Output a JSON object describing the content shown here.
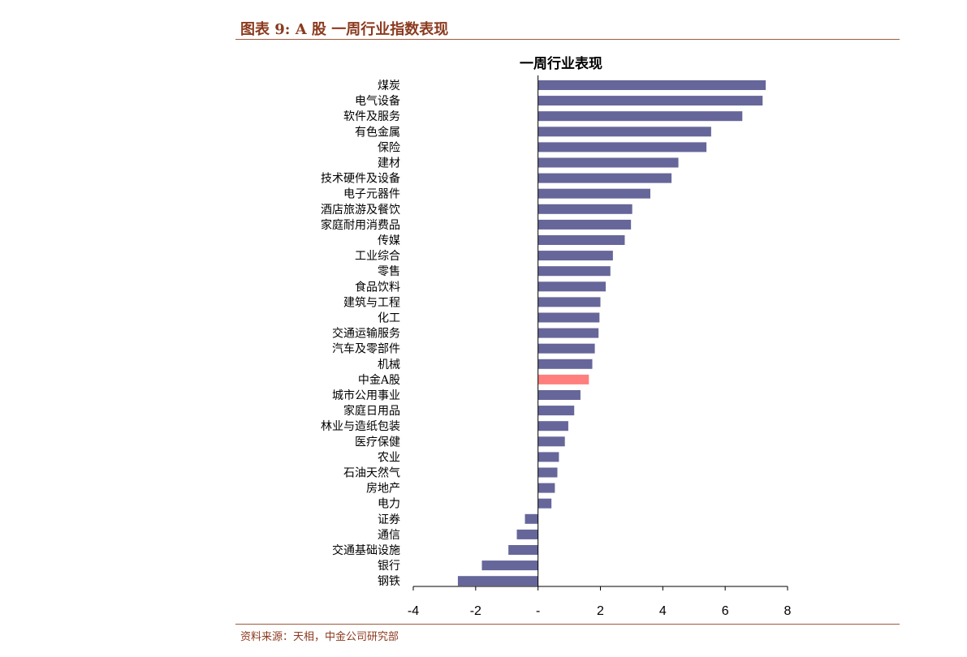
{
  "figure": {
    "title": "图表 9:  A 股  一周行业指数表现",
    "source": "资料来源：天相，中金公司研究部"
  },
  "chart_data": {
    "type": "bar",
    "orientation": "horizontal",
    "title": "一周行业表现",
    "xlabel": "",
    "ylabel": "",
    "xlim": [
      -4,
      8
    ],
    "x_ticks": [
      -4,
      -2,
      0,
      2,
      4,
      6,
      8
    ],
    "x_tick_labels": [
      "-4",
      "-2",
      "-",
      "2",
      "4",
      "6",
      "8"
    ],
    "grid": false,
    "legend": "none",
    "categories": [
      "煤炭",
      "电气设备",
      "软件及服务",
      "有色金属",
      "保险",
      "建材",
      "技术硬件及设备",
      "电子元器件",
      "酒店旅游及餐饮",
      "家庭耐用消费品",
      "传媒",
      "工业综合",
      "零售",
      "食品饮料",
      "建筑与工程",
      "化工",
      "交通运输服务",
      "汽车及零部件",
      "机械",
      "中金A股",
      "城市公用事业",
      "家庭日用品",
      "林业与造纸包装",
      "医疗保健",
      "农业",
      "石油天然气",
      "房地产",
      "电力",
      "证券",
      "通信",
      "交通基础设施",
      "银行",
      "钢铁"
    ],
    "values": [
      7.3,
      7.2,
      6.55,
      5.55,
      5.4,
      4.5,
      4.28,
      3.6,
      3.02,
      2.98,
      2.78,
      2.4,
      2.32,
      2.17,
      2.0,
      1.97,
      1.94,
      1.82,
      1.74,
      1.63,
      1.36,
      1.16,
      0.97,
      0.86,
      0.67,
      0.62,
      0.54,
      0.43,
      -0.42,
      -0.68,
      -0.95,
      -1.8,
      -2.57
    ],
    "highlight_category": "中金A股",
    "colors": {
      "bar": "#66669A",
      "highlight": "#FF7F7F"
    }
  }
}
